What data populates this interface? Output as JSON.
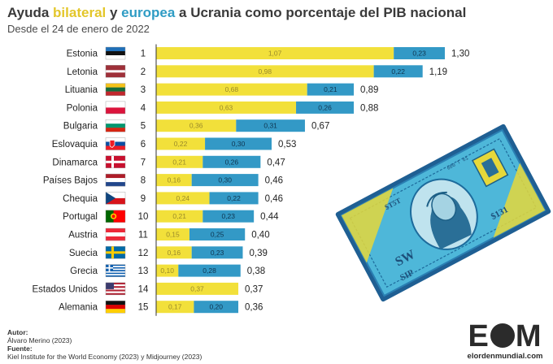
{
  "header": {
    "title_prefix": "Ayuda ",
    "title_bilateral": "bilateral",
    "title_mid": " y ",
    "title_europea": "europea",
    "title_suffix": " a Ucrania como porcentaje del PIB nacional",
    "subtitle": "Desde el 24 de enero de 2022"
  },
  "colors": {
    "bilateral": "#f2e03a",
    "europea": "#3399c6",
    "rank_line": "#333333"
  },
  "chart_data": {
    "type": "bar",
    "orientation": "horizontal",
    "stacked": true,
    "categories": [
      "Estonia",
      "Letonia",
      "Lituania",
      "Polonia",
      "Bulgaria",
      "Eslovaquia",
      "Dinamarca",
      "Países Bajos",
      "Chequia",
      "Portugal",
      "Austria",
      "Suecia",
      "Grecia",
      "Estados Unidos",
      "Alemania"
    ],
    "ranks": [
      "1",
      "2",
      "3",
      "4",
      "5",
      "6",
      "7",
      "8",
      "9",
      "10",
      "11",
      "12",
      "13",
      "14",
      "15"
    ],
    "series": [
      {
        "name": "bilateral",
        "values": [
          1.07,
          0.98,
          0.68,
          0.63,
          0.36,
          0.22,
          0.21,
          0.16,
          0.24,
          0.21,
          0.15,
          0.16,
          0.1,
          0.37,
          0.17
        ]
      },
      {
        "name": "europea",
        "values": [
          0.23,
          0.22,
          0.21,
          0.26,
          0.31,
          0.3,
          0.26,
          0.3,
          0.22,
          0.23,
          0.25,
          0.23,
          0.28,
          null,
          0.2
        ]
      }
    ],
    "segment_labels": {
      "bilateral": [
        "1,07",
        "0,98",
        "0,68",
        "0,63",
        "0,36",
        "0,22",
        "0,21",
        "0,16",
        "0,24",
        "0,21",
        "0,15",
        "0,16",
        "0,10",
        "0,37",
        "0,17"
      ],
      "europea": [
        "0,23",
        "0,22",
        "0,21",
        "0,26",
        "0,31",
        "0,30",
        "0,26",
        "0,30",
        "0,22",
        "0,23",
        "0,25",
        "0,23",
        "0,28",
        "",
        "0,20"
      ]
    },
    "total_labels": [
      "1,30",
      "1,19",
      "0,89",
      "0,88",
      "0,67",
      "0,53",
      "0,47",
      "0,46",
      "0,46",
      "0,44",
      "0,40",
      "0,39",
      "0,38",
      "0,37",
      "0,36"
    ],
    "flags": [
      "estonia-flag",
      "latvia-flag",
      "lithuania-flag",
      "poland-flag",
      "bulgaria-flag",
      "slovakia-flag",
      "denmark-flag",
      "netherlands-flag",
      "czechia-flag",
      "portugal-flag",
      "austria-flag",
      "sweden-flag",
      "greece-flag",
      "usa-flag",
      "germany-flag"
    ],
    "xlim": [
      0,
      1.3
    ],
    "grid": false,
    "legend": "in-title"
  },
  "illustration": {
    "name": "dollar-bill-illustration"
  },
  "footer": {
    "author_heading": "Autor:",
    "author": "Álvaro Merino (2023)",
    "source_heading": "Fuente:",
    "source": "Kiel Institute for the World Economy (2023) y Midjourney (2023)"
  },
  "logo": {
    "left": "E",
    "right": "M",
    "url": "elordenmundial.com"
  }
}
